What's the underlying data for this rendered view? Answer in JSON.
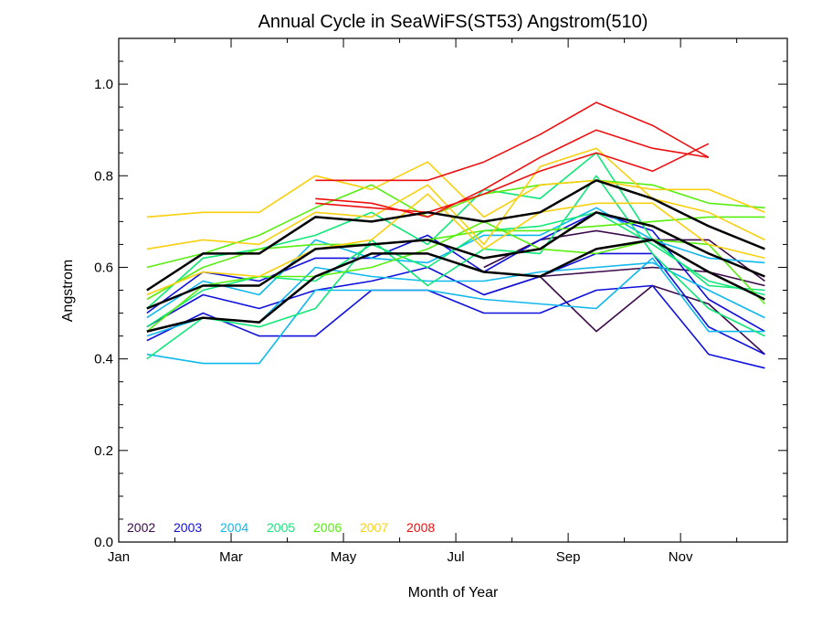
{
  "chart_data": {
    "type": "line",
    "title": "Annual Cycle in SeaWiFS(ST53) Angstrom(510)",
    "xlabel": "Month of Year",
    "ylabel": "Angstrom",
    "xlim": [
      1,
      12.9
    ],
    "ylim": [
      0.0,
      1.1
    ],
    "x_ticks": [
      {
        "value": 1,
        "label": "Jan"
      },
      {
        "value": 3,
        "label": "Mar"
      },
      {
        "value": 5,
        "label": "May"
      },
      {
        "value": 7,
        "label": "Jul"
      },
      {
        "value": 9,
        "label": "Sep"
      },
      {
        "value": 11,
        "label": "Nov"
      }
    ],
    "x_minor_ticks": [
      2,
      4,
      6,
      8,
      10,
      12
    ],
    "y_ticks": [
      {
        "value": 0.0,
        "label": "0.0"
      },
      {
        "value": 0.2,
        "label": "0.2"
      },
      {
        "value": 0.4,
        "label": "0.4"
      },
      {
        "value": 0.6,
        "label": "0.6"
      },
      {
        "value": 0.8,
        "label": "0.8"
      },
      {
        "value": 1.0,
        "label": "1.0"
      }
    ],
    "grid": false,
    "legend_placement": "bottom-left",
    "legend": [
      {
        "label": "2002",
        "color": "#3a0a4a"
      },
      {
        "label": "2003",
        "color": "#1010dd"
      },
      {
        "label": "2004",
        "color": "#10b8ee"
      },
      {
        "label": "2005",
        "color": "#10e878"
      },
      {
        "label": "2006",
        "color": "#58ee10"
      },
      {
        "label": "2007",
        "color": "#f8d010"
      },
      {
        "label": "2008",
        "color": "#ee1010"
      }
    ],
    "series": [
      {
        "color": "#3a0a4a",
        "x": [
          7.5,
          8.5,
          9.5,
          10.5,
          11.5,
          12.5
        ],
        "y": [
          0.54,
          0.58,
          0.46,
          0.56,
          0.52,
          0.41
        ]
      },
      {
        "color": "#3a0a4a",
        "x": [
          7.5,
          8.5,
          9.5,
          10.5,
          11.5,
          12.5
        ],
        "y": [
          0.59,
          0.58,
          0.59,
          0.6,
          0.59,
          0.56
        ]
      },
      {
        "color": "#3a0a4a",
        "x": [
          7.5,
          8.5,
          9.5,
          10.5,
          11.5,
          12.5
        ],
        "y": [
          0.6,
          0.66,
          0.68,
          0.66,
          0.66,
          0.57
        ]
      },
      {
        "color": "#1010dd",
        "x": [
          1.5,
          2.5,
          3.5,
          4.5,
          5.5,
          6.5,
          7.5,
          8.5,
          9.5,
          10.5,
          11.5,
          12.5
        ],
        "y": [
          0.44,
          0.5,
          0.45,
          0.45,
          0.55,
          0.55,
          0.5,
          0.5,
          0.55,
          0.56,
          0.41,
          0.38
        ]
      },
      {
        "color": "#1010dd",
        "x": [
          1.5,
          2.5,
          3.5,
          4.5,
          5.5,
          6.5,
          7.5,
          8.5,
          9.5,
          10.5,
          11.5,
          12.5
        ],
        "y": [
          0.47,
          0.54,
          0.51,
          0.55,
          0.57,
          0.6,
          0.54,
          0.58,
          0.63,
          0.63,
          0.47,
          0.41
        ]
      },
      {
        "color": "#1010dd",
        "x": [
          1.5,
          2.5,
          3.5,
          4.5,
          5.5,
          6.5,
          7.5,
          8.5,
          9.5,
          10.5,
          11.5,
          12.5
        ],
        "y": [
          0.5,
          0.59,
          0.57,
          0.62,
          0.62,
          0.67,
          0.59,
          0.66,
          0.72,
          0.68,
          0.53,
          0.46
        ]
      },
      {
        "color": "#10b8ee",
        "x": [
          1.5,
          2.5,
          3.5,
          4.5,
          5.5,
          6.5,
          7.5,
          8.5,
          9.5,
          10.5,
          11.5,
          12.5
        ],
        "y": [
          0.41,
          0.39,
          0.39,
          0.55,
          0.55,
          0.55,
          0.53,
          0.52,
          0.51,
          0.62,
          0.46,
          0.46
        ]
      },
      {
        "color": "#10b8ee",
        "x": [
          1.5,
          2.5,
          3.5,
          4.5,
          5.5,
          6.5,
          7.5,
          8.5,
          9.5,
          10.5,
          11.5,
          12.5
        ],
        "y": [
          0.45,
          0.49,
          0.48,
          0.6,
          0.58,
          0.57,
          0.57,
          0.59,
          0.6,
          0.61,
          0.55,
          0.49
        ]
      },
      {
        "color": "#10b8ee",
        "x": [
          1.5,
          2.5,
          3.5,
          4.5,
          5.5,
          6.5,
          7.5,
          8.5,
          9.5,
          10.5,
          11.5,
          12.5
        ],
        "y": [
          0.49,
          0.57,
          0.54,
          0.66,
          0.62,
          0.61,
          0.67,
          0.67,
          0.73,
          0.66,
          0.62,
          0.61
        ]
      },
      {
        "color": "#10e878",
        "x": [
          1.5,
          2.5,
          3.5,
          4.5,
          5.5,
          6.5,
          7.5,
          8.5,
          9.5,
          10.5,
          11.5,
          12.5
        ],
        "y": [
          0.4,
          0.49,
          0.47,
          0.51,
          0.66,
          0.56,
          0.64,
          0.63,
          0.8,
          0.63,
          0.51,
          0.45
        ]
      },
      {
        "color": "#10e878",
        "x": [
          1.5,
          2.5,
          3.5,
          4.5,
          5.5,
          6.5,
          7.5,
          8.5,
          9.5,
          10.5,
          11.5,
          12.5
        ],
        "y": [
          0.47,
          0.55,
          0.58,
          0.57,
          0.65,
          0.6,
          0.68,
          0.69,
          0.72,
          0.65,
          0.57,
          0.54
        ]
      },
      {
        "color": "#10e878",
        "x": [
          1.5,
          2.5,
          3.5,
          4.5,
          5.5,
          6.5,
          7.5,
          8.5,
          9.5,
          10.5,
          11.5,
          12.5
        ],
        "y": [
          0.51,
          0.62,
          0.64,
          0.67,
          0.72,
          0.65,
          0.77,
          0.75,
          0.85,
          0.66,
          0.56,
          0.55
        ]
      },
      {
        "color": "#58ee10",
        "x": [
          1.5,
          2.5,
          3.5,
          4.5,
          5.5,
          6.5,
          7.5,
          8.5,
          9.5,
          10.5,
          11.5,
          12.5
        ],
        "y": [
          0.46,
          0.56,
          0.58,
          0.58,
          0.6,
          0.64,
          0.7,
          0.64,
          0.63,
          0.66,
          0.65,
          0.52
        ]
      },
      {
        "color": "#58ee10",
        "x": [
          1.5,
          2.5,
          3.5,
          4.5,
          5.5,
          6.5,
          7.5,
          8.5,
          9.5,
          10.5,
          11.5,
          12.5
        ],
        "y": [
          0.53,
          0.6,
          0.64,
          0.65,
          0.65,
          0.66,
          0.68,
          0.68,
          0.69,
          0.7,
          0.71,
          0.71
        ]
      },
      {
        "color": "#58ee10",
        "x": [
          1.5,
          2.5,
          3.5,
          4.5,
          5.5,
          6.5,
          7.5,
          8.5,
          9.5,
          10.5,
          11.5,
          12.5
        ],
        "y": [
          0.6,
          0.63,
          0.67,
          0.73,
          0.78,
          0.71,
          0.76,
          0.78,
          0.79,
          0.78,
          0.74,
          0.73
        ]
      },
      {
        "color": "#f8d010",
        "x": [
          1.5,
          2.5,
          3.5,
          4.5,
          5.5,
          6.5,
          7.5,
          8.5,
          9.5,
          10.5,
          11.5,
          12.5
        ],
        "y": [
          0.54,
          0.59,
          0.58,
          0.64,
          0.66,
          0.76,
          0.64,
          0.72,
          0.74,
          0.74,
          0.65,
          0.62
        ]
      },
      {
        "color": "#f8d010",
        "x": [
          1.5,
          2.5,
          3.5,
          4.5,
          5.5,
          6.5,
          7.5,
          8.5,
          9.5,
          10.5,
          11.5,
          12.5
        ],
        "y": [
          0.64,
          0.66,
          0.65,
          0.72,
          0.71,
          0.78,
          0.65,
          0.82,
          0.86,
          0.75,
          0.72,
          0.66
        ]
      },
      {
        "color": "#f8d010",
        "x": [
          1.5,
          2.5,
          3.5,
          4.5,
          5.5,
          6.5,
          7.5,
          8.5,
          9.5,
          10.5,
          11.5,
          12.5
        ],
        "y": [
          0.71,
          0.72,
          0.72,
          0.8,
          0.77,
          0.83,
          0.71,
          0.78,
          0.79,
          0.77,
          0.77,
          0.72
        ]
      },
      {
        "color": "#ee1010",
        "x": [
          4.5,
          5.5,
          6.5,
          7.5,
          8.5,
          9.5,
          10.5,
          11.5
        ],
        "y": [
          0.74,
          0.73,
          0.72,
          0.76,
          0.81,
          0.85,
          0.81,
          0.87
        ]
      },
      {
        "color": "#ee1010",
        "x": [
          4.5,
          5.5,
          6.5,
          7.5,
          8.5,
          9.5,
          10.5,
          11.5
        ],
        "y": [
          0.75,
          0.74,
          0.71,
          0.77,
          0.84,
          0.9,
          0.86,
          0.84
        ]
      },
      {
        "color": "#ee1010",
        "x": [
          4.5,
          5.5,
          6.5,
          7.5,
          8.5,
          9.5,
          10.5,
          11.5
        ],
        "y": [
          0.79,
          0.79,
          0.79,
          0.83,
          0.89,
          0.96,
          0.91,
          0.84
        ]
      },
      {
        "color": "#000000",
        "width": 2.5,
        "x": [
          1.5,
          2.5,
          3.5,
          4.5,
          5.5,
          6.5,
          7.5,
          8.5,
          9.5,
          10.5,
          11.5,
          12.5
        ],
        "y": [
          0.46,
          0.49,
          0.48,
          0.58,
          0.63,
          0.63,
          0.59,
          0.58,
          0.64,
          0.66,
          0.59,
          0.53
        ]
      },
      {
        "color": "#000000",
        "width": 2.5,
        "x": [
          1.5,
          2.5,
          3.5,
          4.5,
          5.5,
          6.5,
          7.5,
          8.5,
          9.5,
          10.5,
          11.5,
          12.5
        ],
        "y": [
          0.51,
          0.56,
          0.56,
          0.64,
          0.65,
          0.66,
          0.62,
          0.64,
          0.72,
          0.69,
          0.63,
          0.58
        ]
      },
      {
        "color": "#000000",
        "width": 2.5,
        "x": [
          1.5,
          2.5,
          3.5,
          4.5,
          5.5,
          6.5,
          7.5,
          8.5,
          9.5,
          10.5,
          11.5,
          12.5
        ],
        "y": [
          0.55,
          0.63,
          0.63,
          0.71,
          0.7,
          0.72,
          0.7,
          0.72,
          0.79,
          0.75,
          0.69,
          0.64
        ]
      }
    ]
  }
}
